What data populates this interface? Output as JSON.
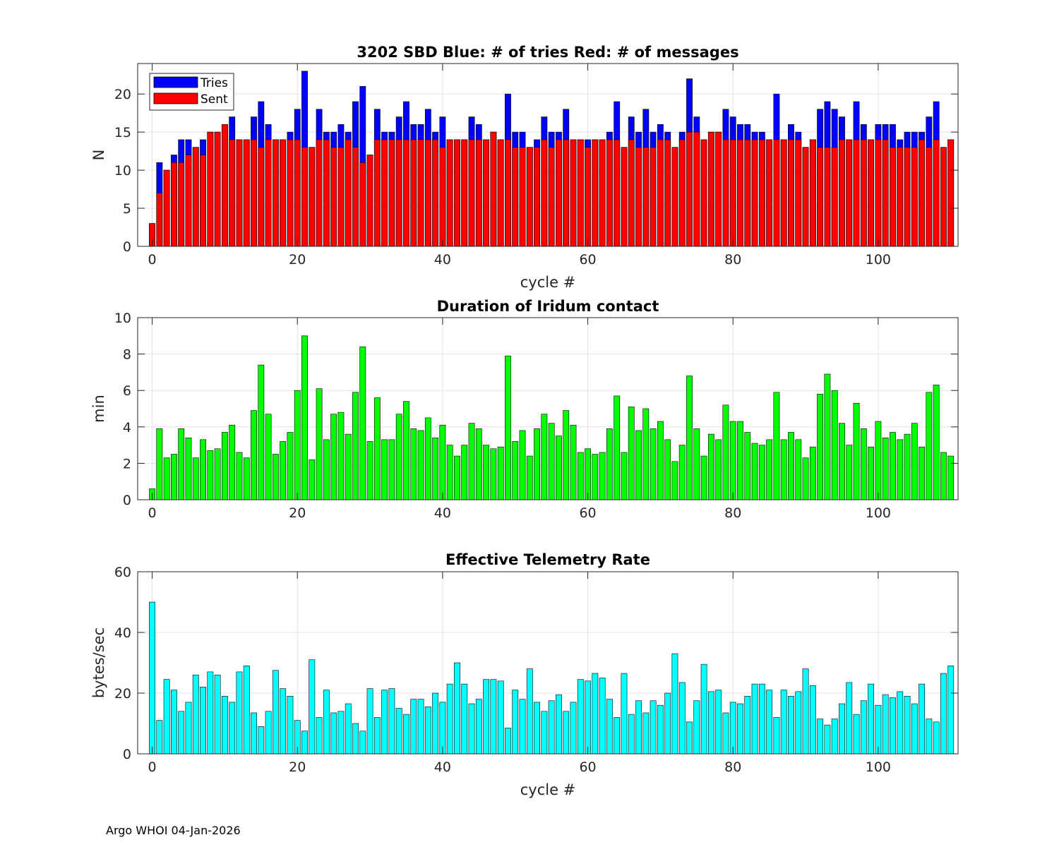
{
  "footer": "Argo WHOI 04-Jan-2026",
  "chart_data": [
    {
      "type": "bar",
      "title": "3202 SBD  Blue: # of tries   Red: # of messages",
      "xlabel": "cycle #",
      "ylabel": "N",
      "xlim": [
        -2,
        111
      ],
      "ylim": [
        0,
        24
      ],
      "xticks": [
        0,
        20,
        40,
        60,
        80,
        100
      ],
      "yticks": [
        0,
        5,
        10,
        15,
        20
      ],
      "grid": true,
      "legend": {
        "position": "top-left",
        "entries": [
          "Tries",
          "Sent"
        ]
      },
      "x": [
        0,
        1,
        2,
        3,
        4,
        5,
        6,
        7,
        8,
        9,
        10,
        11,
        12,
        13,
        14,
        15,
        16,
        17,
        18,
        19,
        20,
        21,
        22,
        23,
        24,
        25,
        26,
        27,
        28,
        29,
        30,
        31,
        32,
        33,
        34,
        35,
        36,
        37,
        38,
        39,
        40,
        41,
        42,
        43,
        44,
        45,
        46,
        47,
        48,
        49,
        50,
        51,
        52,
        53,
        54,
        55,
        56,
        57,
        58,
        59,
        60,
        61,
        62,
        63,
        64,
        65,
        66,
        67,
        68,
        69,
        70,
        71,
        72,
        73,
        74,
        75,
        76,
        77,
        78,
        79,
        80,
        81,
        82,
        83,
        84,
        85,
        86,
        87,
        88,
        89,
        90,
        91,
        92,
        93,
        94,
        95,
        96,
        97,
        98,
        99,
        100,
        101,
        102,
        103,
        104,
        105,
        106,
        107,
        108,
        109,
        110
      ],
      "series": [
        {
          "name": "Tries",
          "color": "#0000ff",
          "values": [
            3,
            11,
            10,
            12,
            14,
            14,
            13,
            14,
            15,
            15,
            16,
            17,
            14,
            14,
            17,
            19,
            16,
            14,
            14,
            15,
            18,
            23,
            13,
            18,
            15,
            15,
            16,
            15,
            19,
            21,
            12,
            18,
            15,
            15,
            17,
            19,
            16,
            16,
            18,
            15,
            17,
            14,
            14,
            14,
            17,
            16,
            14,
            15,
            14,
            20,
            15,
            15,
            13,
            14,
            17,
            15,
            15,
            18,
            14,
            14,
            14,
            14,
            14,
            15,
            19,
            13,
            17,
            15,
            18,
            15,
            16,
            15,
            13,
            15,
            22,
            17,
            14,
            15,
            15,
            18,
            17,
            16,
            16,
            15,
            15,
            14,
            20,
            14,
            16,
            15,
            13,
            14,
            18,
            19,
            18,
            17,
            14,
            19,
            16,
            14,
            16,
            16,
            16,
            14,
            15,
            15,
            15,
            17,
            19,
            13,
            14
          ]
        },
        {
          "name": "Sent",
          "color": "#ff0000",
          "values": [
            3,
            7,
            10,
            11,
            11,
            12,
            13,
            12,
            15,
            15,
            16,
            14,
            14,
            14,
            14,
            13,
            14,
            14,
            14,
            14,
            14,
            13,
            13,
            14,
            14,
            13,
            13,
            14,
            13,
            11,
            12,
            14,
            14,
            14,
            14,
            14,
            14,
            14,
            14,
            14,
            13,
            14,
            14,
            14,
            14,
            14,
            14,
            15,
            14,
            14,
            13,
            13,
            13,
            13,
            14,
            13,
            14,
            14,
            14,
            14,
            13,
            14,
            14,
            14,
            14,
            13,
            14,
            13,
            13,
            13,
            14,
            14,
            13,
            14,
            15,
            15,
            14,
            15,
            15,
            14,
            14,
            14,
            14,
            14,
            14,
            14,
            14,
            14,
            14,
            14,
            13,
            14,
            13,
            13,
            13,
            14,
            14,
            14,
            14,
            14,
            14,
            14,
            13,
            13,
            13,
            13,
            14,
            13,
            14,
            13,
            14
          ]
        }
      ]
    },
    {
      "type": "bar",
      "title": "Duration of Iridum contact",
      "xlabel": "",
      "ylabel": "min",
      "xlim": [
        -2,
        111
      ],
      "ylim": [
        0,
        10
      ],
      "xticks": [
        0,
        20,
        40,
        60,
        80,
        100
      ],
      "yticks": [
        0,
        2,
        4,
        6,
        8,
        10
      ],
      "grid": true,
      "x": [
        0,
        1,
        2,
        3,
        4,
        5,
        6,
        7,
        8,
        9,
        10,
        11,
        12,
        13,
        14,
        15,
        16,
        17,
        18,
        19,
        20,
        21,
        22,
        23,
        24,
        25,
        26,
        27,
        28,
        29,
        30,
        31,
        32,
        33,
        34,
        35,
        36,
        37,
        38,
        39,
        40,
        41,
        42,
        43,
        44,
        45,
        46,
        47,
        48,
        49,
        50,
        51,
        52,
        53,
        54,
        55,
        56,
        57,
        58,
        59,
        60,
        61,
        62,
        63,
        64,
        65,
        66,
        67,
        68,
        69,
        70,
        71,
        72,
        73,
        74,
        75,
        76,
        77,
        78,
        79,
        80,
        81,
        82,
        83,
        84,
        85,
        86,
        87,
        88,
        89,
        90,
        91,
        92,
        93,
        94,
        95,
        96,
        97,
        98,
        99,
        100,
        101,
        102,
        103,
        104,
        105,
        106,
        107,
        108,
        109,
        110
      ],
      "series": [
        {
          "name": "Duration",
          "color": "#00ff00",
          "values": [
            0.6,
            3.9,
            2.3,
            2.5,
            3.9,
            3.4,
            2.3,
            3.3,
            2.7,
            2.8,
            3.7,
            4.1,
            2.6,
            2.3,
            4.9,
            7.4,
            4.7,
            2.5,
            3.2,
            3.7,
            6.0,
            9.0,
            2.2,
            6.1,
            3.3,
            4.7,
            4.8,
            3.6,
            5.9,
            8.4,
            3.2,
            5.6,
            3.3,
            3.3,
            4.7,
            5.4,
            3.9,
            3.8,
            4.5,
            3.4,
            4.1,
            3.0,
            2.4,
            3.0,
            4.2,
            3.9,
            3.0,
            2.8,
            2.9,
            7.9,
            3.2,
            3.8,
            2.4,
            3.9,
            4.7,
            4.2,
            3.5,
            4.9,
            4.1,
            2.6,
            2.8,
            2.5,
            2.6,
            3.9,
            5.7,
            2.6,
            5.1,
            3.8,
            5.0,
            3.9,
            4.3,
            3.3,
            2.1,
            3.0,
            6.8,
            3.9,
            2.4,
            3.6,
            3.3,
            5.2,
            4.3,
            4.3,
            3.7,
            3.1,
            3.0,
            3.3,
            5.9,
            3.3,
            3.7,
            3.3,
            2.3,
            2.9,
            5.8,
            6.9,
            6.0,
            4.2,
            3.0,
            5.3,
            3.9,
            2.9,
            4.3,
            3.4,
            3.7,
            3.3,
            3.6,
            4.2,
            2.9,
            5.9,
            6.3,
            2.6,
            2.4
          ]
        }
      ]
    },
    {
      "type": "bar",
      "title": "Effective Telemetry Rate",
      "xlabel": "cycle #",
      "ylabel": "bytes/sec",
      "xlim": [
        -2,
        111
      ],
      "ylim": [
        0,
        60
      ],
      "xticks": [
        0,
        20,
        40,
        60,
        80,
        100
      ],
      "yticks": [
        0,
        20,
        40,
        60
      ],
      "grid": true,
      "x": [
        0,
        1,
        2,
        3,
        4,
        5,
        6,
        7,
        8,
        9,
        10,
        11,
        12,
        13,
        14,
        15,
        16,
        17,
        18,
        19,
        20,
        21,
        22,
        23,
        24,
        25,
        26,
        27,
        28,
        29,
        30,
        31,
        32,
        33,
        34,
        35,
        36,
        37,
        38,
        39,
        40,
        41,
        42,
        43,
        44,
        45,
        46,
        47,
        48,
        49,
        50,
        51,
        52,
        53,
        54,
        55,
        56,
        57,
        58,
        59,
        60,
        61,
        62,
        63,
        64,
        65,
        66,
        67,
        68,
        69,
        70,
        71,
        72,
        73,
        74,
        75,
        76,
        77,
        78,
        79,
        80,
        81,
        82,
        83,
        84,
        85,
        86,
        87,
        88,
        89,
        90,
        91,
        92,
        93,
        94,
        95,
        96,
        97,
        98,
        99,
        100,
        101,
        102,
        103,
        104,
        105,
        106,
        107,
        108,
        109,
        110
      ],
      "series": [
        {
          "name": "Rate",
          "color": "#00ffff",
          "values": [
            50,
            11,
            24.5,
            21,
            14,
            17,
            26,
            22,
            27,
            26,
            19,
            17,
            27,
            29,
            13.5,
            9,
            14,
            27.5,
            21.5,
            19,
            11,
            7.5,
            31,
            12,
            21,
            13.5,
            14,
            16.5,
            10,
            7.5,
            21.5,
            12,
            21,
            21.5,
            15,
            13,
            18,
            18,
            15.5,
            20,
            17,
            23,
            30,
            23,
            16.5,
            18,
            24.5,
            24.5,
            24,
            8.5,
            21,
            18,
            28,
            17,
            14,
            17.5,
            19.5,
            14,
            17,
            24.5,
            24,
            26.5,
            25,
            18,
            12,
            26.5,
            13,
            17.5,
            13.5,
            17.5,
            16,
            20,
            33,
            23.5,
            10.5,
            17.5,
            29.5,
            20.5,
            21,
            13.5,
            17,
            16.5,
            19,
            23,
            23,
            21,
            12,
            21,
            19,
            20.5,
            28,
            22.5,
            11.5,
            9.5,
            11.5,
            16.5,
            23.5,
            13,
            17.5,
            23,
            16,
            19.5,
            18.5,
            20.5,
            19,
            16.5,
            23,
            11.5,
            10.5,
            26.5,
            29
          ]
        }
      ]
    }
  ]
}
